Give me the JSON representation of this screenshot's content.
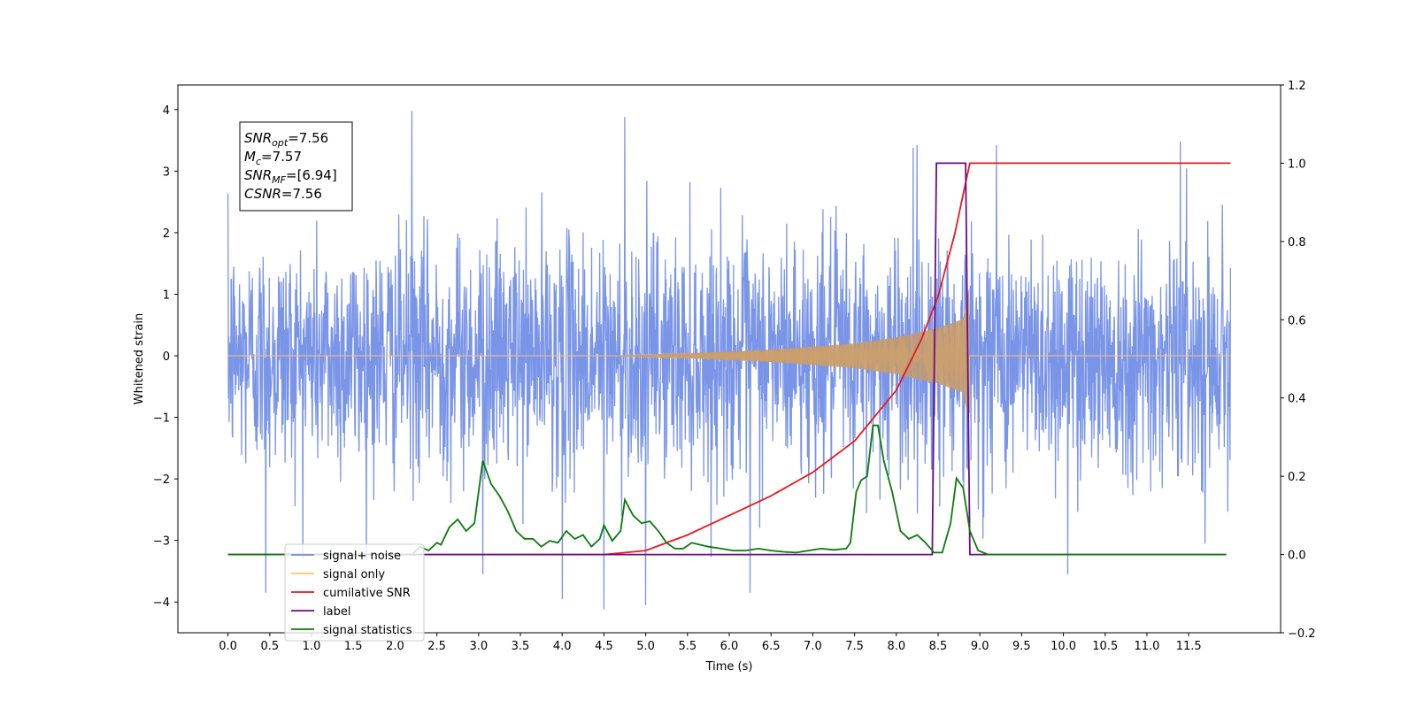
{
  "chart_data": {
    "type": "line",
    "xlabel": "Time (s)",
    "ylabel": "Whitened strain",
    "xlim": [
      -0.6,
      12.6
    ],
    "ylim": [
      -4.5,
      4.4
    ],
    "y2lim": [
      -0.2,
      1.2
    ],
    "x_ticks": [
      0.0,
      0.5,
      1.0,
      1.5,
      2.0,
      2.5,
      3.0,
      3.5,
      4.0,
      4.5,
      5.0,
      5.5,
      6.0,
      6.5,
      7.0,
      7.5,
      8.0,
      8.5,
      9.0,
      9.5,
      10.0,
      10.5,
      11.0,
      11.5
    ],
    "x_tick_labels": [
      "0.0",
      "0.5",
      "1.0",
      "1.5",
      "2.0",
      "2.5",
      "3.0",
      "3.5",
      "4.0",
      "4.5",
      "5.0",
      "5.5",
      "6.0",
      "6.5",
      "7.0",
      "7.5",
      "8.0",
      "8.5",
      "9.0",
      "9.5",
      "10.0",
      "10.5",
      "11.0",
      "11.5"
    ],
    "y_ticks": [
      -4,
      -3,
      -2,
      -1,
      0,
      1,
      2,
      3,
      4
    ],
    "y_tick_labels": [
      "−4",
      "−3",
      "−2",
      "−1",
      "0",
      "1",
      "2",
      "3",
      "4"
    ],
    "y2_ticks": [
      -0.2,
      0.0,
      0.2,
      0.4,
      0.6,
      0.8,
      1.0,
      1.2
    ],
    "y2_tick_labels": [
      "−0.2",
      "0.0",
      "0.2",
      "0.4",
      "0.6",
      "0.8",
      "1.0",
      "1.2"
    ],
    "legend_position": "lower-left",
    "grid": false,
    "series": [
      {
        "name": "signal+ noise",
        "axis": "left",
        "color": "#6b8ae6",
        "x_range": [
          0.0,
          12.0
        ],
        "amplitude_sigma": 0.95,
        "peak_values": [
          {
            "x": 2.2,
            "y": 3.98
          },
          {
            "x": 4.75,
            "y": 3.88
          },
          {
            "x": 8.2,
            "y": 3.38
          },
          {
            "x": 9.2,
            "y": 3.42
          },
          {
            "x": 11.4,
            "y": 3.48
          },
          {
            "x": 0.45,
            "y": -3.85
          },
          {
            "x": 4.5,
            "y": -4.12
          },
          {
            "x": 4.0,
            "y": -3.95
          },
          {
            "x": 6.25,
            "y": -3.85
          },
          {
            "x": 5.0,
            "y": -4.05
          },
          {
            "x": 3.05,
            "y": -3.55
          },
          {
            "x": 10.05,
            "y": -3.55
          }
        ]
      },
      {
        "name": "signal only",
        "axis": "left",
        "color": "#f5c26b",
        "x_range": [
          0.0,
          12.0
        ],
        "chirp_start": 4.5,
        "chirp_end": 8.87,
        "envelope": [
          {
            "x": 4.5,
            "y": 0.0
          },
          {
            "x": 5.5,
            "y": 0.04
          },
          {
            "x": 6.5,
            "y": 0.1
          },
          {
            "x": 7.5,
            "y": 0.2
          },
          {
            "x": 8.0,
            "y": 0.3
          },
          {
            "x": 8.5,
            "y": 0.45
          },
          {
            "x": 8.8,
            "y": 0.6
          },
          {
            "x": 8.87,
            "y": 1.1
          }
        ]
      },
      {
        "name": "cumilative SNR",
        "axis": "right",
        "color": "#e8191b",
        "points": [
          {
            "x": 0.0,
            "y": 0.0
          },
          {
            "x": 4.5,
            "y": 0.0
          },
          {
            "x": 5.0,
            "y": 0.01
          },
          {
            "x": 5.5,
            "y": 0.05
          },
          {
            "x": 6.0,
            "y": 0.1
          },
          {
            "x": 6.5,
            "y": 0.15
          },
          {
            "x": 7.0,
            "y": 0.21
          },
          {
            "x": 7.5,
            "y": 0.29
          },
          {
            "x": 8.0,
            "y": 0.42
          },
          {
            "x": 8.3,
            "y": 0.55
          },
          {
            "x": 8.5,
            "y": 0.66
          },
          {
            "x": 8.7,
            "y": 0.82
          },
          {
            "x": 8.85,
            "y": 0.97
          },
          {
            "x": 8.88,
            "y": 1.0
          },
          {
            "x": 12.0,
            "y": 1.0
          }
        ]
      },
      {
        "name": "label",
        "axis": "right",
        "color": "#6a0d83",
        "points": [
          {
            "x": 0.0,
            "y": 0.0
          },
          {
            "x": 8.43,
            "y": 0.0
          },
          {
            "x": 8.48,
            "y": 1.0
          },
          {
            "x": 8.83,
            "y": 1.0
          },
          {
            "x": 8.88,
            "y": 0.0
          },
          {
            "x": 11.95,
            "y": 0.0
          }
        ]
      },
      {
        "name": "signal statistics",
        "axis": "right",
        "color": "#0b7a0b",
        "points": [
          {
            "x": 0.0,
            "y": 0.0
          },
          {
            "x": 2.2,
            "y": 0.0
          },
          {
            "x": 2.3,
            "y": 0.02
          },
          {
            "x": 2.4,
            "y": 0.01
          },
          {
            "x": 2.5,
            "y": 0.03
          },
          {
            "x": 2.55,
            "y": 0.025
          },
          {
            "x": 2.65,
            "y": 0.07
          },
          {
            "x": 2.75,
            "y": 0.09
          },
          {
            "x": 2.85,
            "y": 0.06
          },
          {
            "x": 2.95,
            "y": 0.08
          },
          {
            "x": 3.05,
            "y": 0.24
          },
          {
            "x": 3.15,
            "y": 0.18
          },
          {
            "x": 3.25,
            "y": 0.15
          },
          {
            "x": 3.35,
            "y": 0.11
          },
          {
            "x": 3.45,
            "y": 0.06
          },
          {
            "x": 3.55,
            "y": 0.04
          },
          {
            "x": 3.65,
            "y": 0.04
          },
          {
            "x": 3.75,
            "y": 0.02
          },
          {
            "x": 3.85,
            "y": 0.035
          },
          {
            "x": 3.95,
            "y": 0.03
          },
          {
            "x": 4.05,
            "y": 0.06
          },
          {
            "x": 4.15,
            "y": 0.04
          },
          {
            "x": 4.25,
            "y": 0.05
          },
          {
            "x": 4.35,
            "y": 0.02
          },
          {
            "x": 4.45,
            "y": 0.04
          },
          {
            "x": 4.5,
            "y": 0.075
          },
          {
            "x": 4.6,
            "y": 0.035
          },
          {
            "x": 4.7,
            "y": 0.06
          },
          {
            "x": 4.75,
            "y": 0.14
          },
          {
            "x": 4.85,
            "y": 0.1
          },
          {
            "x": 4.95,
            "y": 0.08
          },
          {
            "x": 5.05,
            "y": 0.085
          },
          {
            "x": 5.15,
            "y": 0.06
          },
          {
            "x": 5.25,
            "y": 0.03
          },
          {
            "x": 5.35,
            "y": 0.015
          },
          {
            "x": 5.45,
            "y": 0.015
          },
          {
            "x": 5.55,
            "y": 0.03
          },
          {
            "x": 5.65,
            "y": 0.025
          },
          {
            "x": 5.75,
            "y": 0.02
          },
          {
            "x": 5.9,
            "y": 0.015
          },
          {
            "x": 6.05,
            "y": 0.01
          },
          {
            "x": 6.2,
            "y": 0.01
          },
          {
            "x": 6.35,
            "y": 0.015
          },
          {
            "x": 6.5,
            "y": 0.01
          },
          {
            "x": 6.65,
            "y": 0.007
          },
          {
            "x": 6.8,
            "y": 0.005
          },
          {
            "x": 6.95,
            "y": 0.01
          },
          {
            "x": 7.1,
            "y": 0.015
          },
          {
            "x": 7.25,
            "y": 0.012
          },
          {
            "x": 7.4,
            "y": 0.015
          },
          {
            "x": 7.45,
            "y": 0.03
          },
          {
            "x": 7.52,
            "y": 0.16
          },
          {
            "x": 7.58,
            "y": 0.19
          },
          {
            "x": 7.65,
            "y": 0.2
          },
          {
            "x": 7.72,
            "y": 0.33
          },
          {
            "x": 7.78,
            "y": 0.33
          },
          {
            "x": 7.85,
            "y": 0.24
          },
          {
            "x": 7.95,
            "y": 0.16
          },
          {
            "x": 8.05,
            "y": 0.06
          },
          {
            "x": 8.15,
            "y": 0.04
          },
          {
            "x": 8.25,
            "y": 0.05
          },
          {
            "x": 8.35,
            "y": 0.03
          },
          {
            "x": 8.45,
            "y": 0.005
          },
          {
            "x": 8.55,
            "y": 0.005
          },
          {
            "x": 8.65,
            "y": 0.08
          },
          {
            "x": 8.72,
            "y": 0.195
          },
          {
            "x": 8.8,
            "y": 0.17
          },
          {
            "x": 8.88,
            "y": 0.06
          },
          {
            "x": 8.98,
            "y": 0.01
          },
          {
            "x": 9.1,
            "y": 0.0
          },
          {
            "x": 11.95,
            "y": 0.0
          }
        ]
      }
    ],
    "annotation": {
      "lines": [
        {
          "main": "SNR",
          "sub": "opt",
          "value": "=7.56"
        },
        {
          "main": "M",
          "sub": "c",
          "value": "=7.57"
        },
        {
          "main": "SNR",
          "sub": "MF",
          "value": "=[6.94]"
        },
        {
          "main": "CSNR",
          "sub": "",
          "value": "=7.56"
        }
      ]
    }
  }
}
